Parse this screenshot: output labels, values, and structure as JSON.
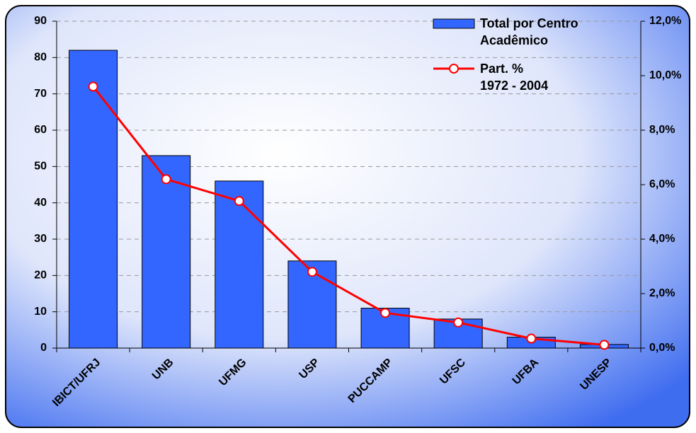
{
  "chart_data": {
    "type": "bar",
    "categories": [
      "IBICT/UFRJ",
      "UNB",
      "UFMG",
      "USP",
      "PUCCAMP",
      "UFSC",
      "UFBA",
      "UNESP"
    ],
    "series": [
      {
        "name": "Total por Centro\nAcadêmico",
        "type": "bar",
        "color": "#3366ff",
        "values": [
          82,
          53,
          46,
          24,
          11,
          8,
          3,
          1
        ]
      },
      {
        "name": "Part. %\n1972 - 2004",
        "type": "line",
        "axis": "y2",
        "color": "#ff0000",
        "values": [
          9.6,
          6.2,
          5.4,
          2.8,
          1.29,
          0.94,
          0.35,
          0.12
        ]
      }
    ],
    "ylim": [
      0,
      90
    ],
    "yticks": [
      0,
      10,
      20,
      30,
      40,
      50,
      60,
      70,
      80,
      90
    ],
    "y2lim": [
      0,
      12
    ],
    "y2ticks": [
      {
        "value": 0,
        "label": "0,0%"
      },
      {
        "value": 2,
        "label": "2,0%"
      },
      {
        "value": 4,
        "label": "4,0%"
      },
      {
        "value": 6,
        "label": "6,0%"
      },
      {
        "value": 8,
        "label": "8,0%"
      },
      {
        "value": 10,
        "label": "10,0%"
      },
      {
        "value": 12,
        "label": "12,0%"
      }
    ],
    "grid": true,
    "legend": "top-right"
  }
}
